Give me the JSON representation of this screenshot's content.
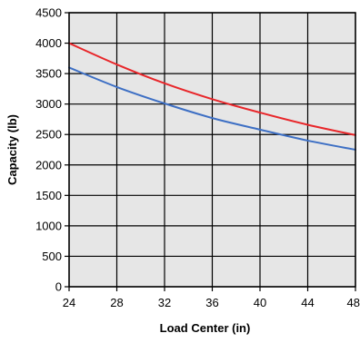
{
  "chart_data": {
    "type": "line",
    "title": "",
    "xlabel": "Load Center (in)",
    "ylabel": "Capacity (lb)",
    "xlim": [
      24,
      48
    ],
    "ylim": [
      0,
      4500
    ],
    "x_ticks": [
      "24",
      "28",
      "32",
      "36",
      "40",
      "44",
      "48"
    ],
    "y_ticks": [
      "0",
      "500",
      "1000",
      "1500",
      "2000",
      "2500",
      "3000",
      "3500",
      "4000",
      "4500"
    ],
    "grid": true,
    "legend": "none",
    "plot_background": "#e6e6e6",
    "series": [
      {
        "color": "#e8262a",
        "x": [
          24,
          28,
          32,
          36,
          40,
          44,
          48
        ],
        "values": [
          4000,
          3650,
          3340,
          3080,
          2860,
          2660,
          2490
        ]
      },
      {
        "color": "#3d6fc4",
        "x": [
          24,
          28,
          32,
          36,
          40,
          44,
          48
        ],
        "values": [
          3600,
          3280,
          3010,
          2770,
          2580,
          2400,
          2250
        ]
      }
    ]
  }
}
